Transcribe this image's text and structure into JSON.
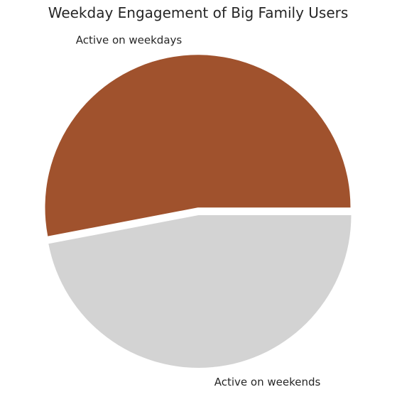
{
  "chart_data": {
    "type": "pie",
    "title": "Weekday Engagement of Big Family Users",
    "start_angle_deg": 0,
    "direction": "counterclockwise",
    "slices": [
      {
        "label": "Active on weekdays",
        "value": 53,
        "color": "#A0522D",
        "explode": 0.05
      },
      {
        "label": "Active on weekends",
        "value": 47,
        "color": "#D3D3D3",
        "explode": 0
      }
    ]
  }
}
